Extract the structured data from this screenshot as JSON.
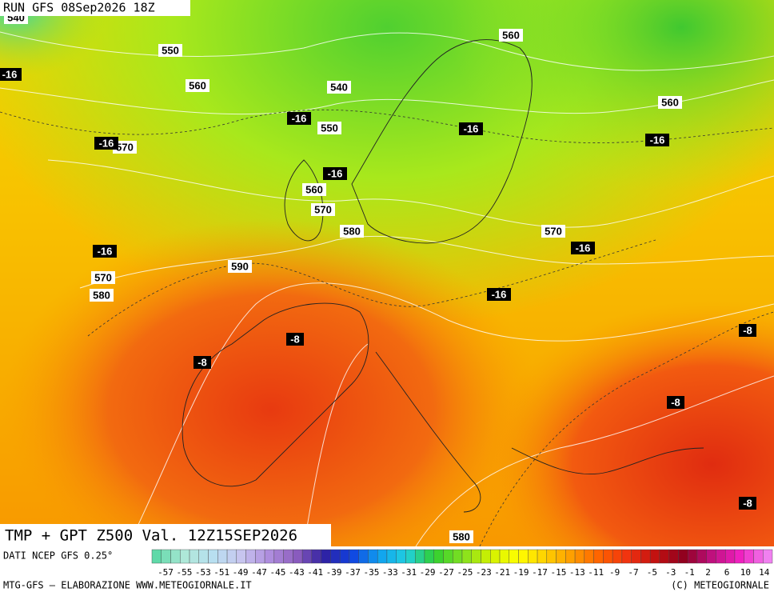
{
  "header": {
    "run": "RUN GFS 08Sep2026 18Z"
  },
  "map": {
    "height_labels": [
      "540",
      "550",
      "560",
      "540",
      "560",
      "560",
      "550",
      "570",
      "560",
      "570",
      "580",
      "570",
      "590",
      "570",
      "580",
      "580"
    ],
    "temp_labels": [
      "-16",
      "-16",
      "-16",
      "-16",
      "-16",
      "-16",
      "-16",
      "-16",
      "-16",
      "-8",
      "-8",
      "-8",
      "-8",
      "-8"
    ],
    "caption": "TMP + GPT Z500 Val. 12Z15SEP2026"
  },
  "legend": {
    "source": "DATI NCEP GFS 0.25°",
    "scale": [
      -57,
      -55,
      -53,
      -51,
      -49,
      -47,
      -45,
      -43,
      -41,
      -39,
      -37,
      -35,
      -33,
      -31,
      -29,
      -27,
      -25,
      -23,
      -21,
      -19,
      -17,
      -15,
      -13,
      -11,
      -9,
      -7,
      -5,
      -3,
      -1,
      2,
      6,
      10,
      14
    ]
  },
  "footer": {
    "left": "MTG-GFS — ELABORAZIONE WWW.METEOGIORNALE.IT",
    "right": "(C) METEOGIORNALE"
  }
}
